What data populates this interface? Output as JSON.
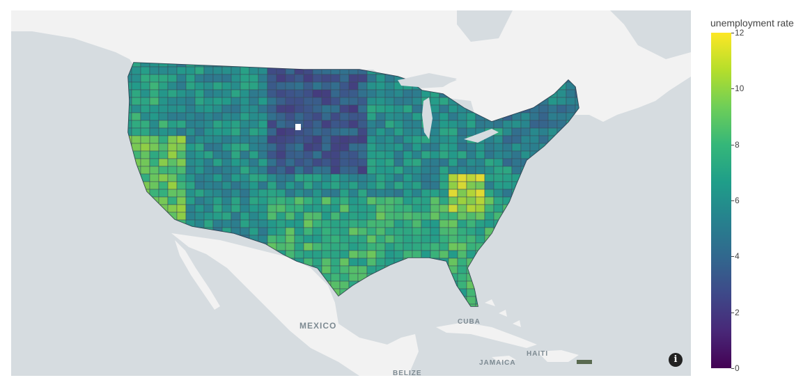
{
  "map": {
    "places": {
      "mexico": "MEXICO",
      "cuba": "CUBA",
      "haiti": "HAITI",
      "jamaica": "JAMAICA",
      "belize": "BELIZE"
    },
    "colors": {
      "water": "#d6dce0",
      "land": "#f2f2f2",
      "borders": "#cfcfcf",
      "county_edge": "#3b4a5a"
    },
    "info_icon": "info-icon"
  },
  "colorbar": {
    "title": "unemployment rate",
    "ticks": [
      "0",
      "2",
      "4",
      "6",
      "8",
      "10",
      "12"
    ],
    "range": [
      0,
      12
    ],
    "colorscale": "viridis"
  },
  "regional_rates": {
    "pacific_northwest": 7,
    "california": 9,
    "great_basin": 6,
    "northern_plains": 3,
    "midwest": 6,
    "appalachia": 11,
    "southeast": 8,
    "gulf_coast": 8,
    "florida": 8,
    "northeast": 5
  }
}
